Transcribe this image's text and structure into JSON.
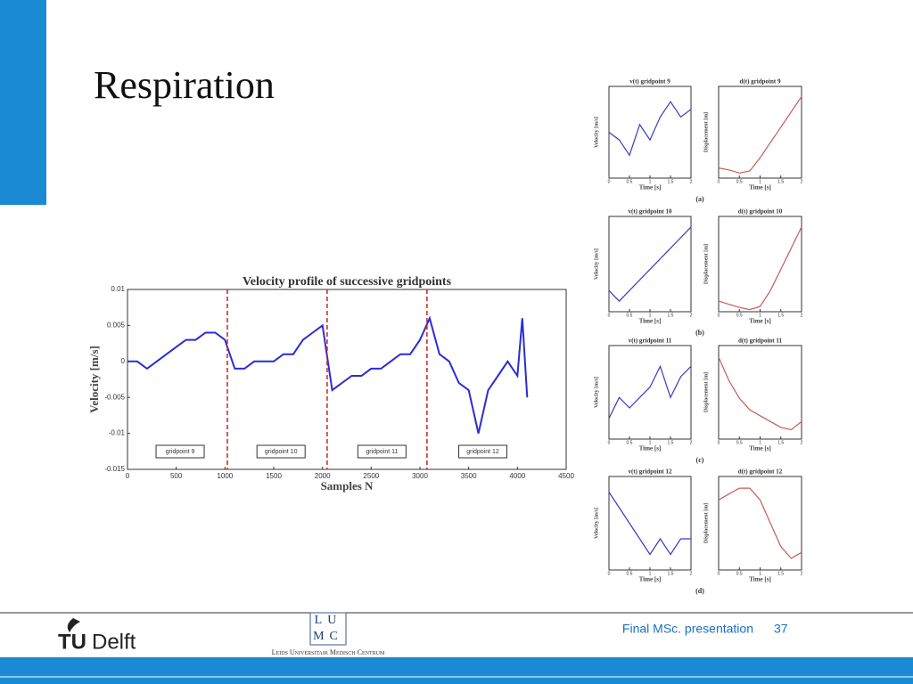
{
  "slide": {
    "title": "Respiration",
    "captions": [
      "(a)",
      "(b)",
      "(c)",
      "(d)"
    ],
    "footer": {
      "text": "Final MSc. presentation",
      "page": 37,
      "tu": "TU",
      "delft": "Delft",
      "lumc_top": "LU",
      "lumc_bottom": "MC",
      "lumc_name": "Leids Universitair Medisch Centrum"
    }
  },
  "chart_data": [
    {
      "type": "line",
      "title": "Velocity profile of successive gridpoints",
      "xlabel": "Samples N",
      "ylabel": "Velocity [m/s]",
      "color": "#2b2bd6",
      "x": [
        0,
        100,
        200,
        300,
        400,
        500,
        600,
        700,
        800,
        900,
        1000,
        1100,
        1200,
        1300,
        1400,
        1500,
        1600,
        1700,
        1800,
        1900,
        2000,
        2100,
        2200,
        2300,
        2400,
        2500,
        2600,
        2700,
        2800,
        2900,
        3000,
        3100,
        3200,
        3300,
        3400,
        3500,
        3600,
        3700,
        3800,
        3900,
        4000,
        4050,
        4100
      ],
      "values": [
        0,
        0,
        -0.001,
        0,
        0.001,
        0.002,
        0.003,
        0.003,
        0.004,
        0.004,
        0.003,
        -0.001,
        -0.001,
        0,
        0,
        0,
        0.001,
        0.001,
        0.003,
        0.004,
        0.005,
        -0.004,
        -0.003,
        -0.002,
        -0.002,
        -0.001,
        -0.001,
        0,
        0.001,
        0.001,
        0.003,
        0.006,
        0.001,
        0,
        -0.003,
        -0.004,
        -0.01,
        -0.004,
        -0.002,
        0,
        -0.002,
        0.006,
        -0.005
      ],
      "xlim": [
        0,
        4500
      ],
      "xticks": [
        0,
        500,
        1000,
        1500,
        2000,
        2500,
        3000,
        3500,
        4000,
        4500
      ],
      "ylim": [
        -0.015,
        0.01
      ],
      "yticks": [
        -0.015,
        -0.01,
        -0.005,
        0,
        0.005,
        0.01
      ],
      "vlines": [
        1024,
        2048,
        3072
      ],
      "vline_color": "#cc2222",
      "annotations": [
        "gridpoint 9",
        "gridpoint 10",
        "gridpoint 11",
        "gridpoint 12"
      ]
    },
    {
      "type": "line",
      "title": "v(t) gridpoint 9",
      "xlabel": "Time [s]",
      "ylabel": "Velocity [m/s]",
      "color": "#3a3ac8",
      "x": [
        0,
        0.25,
        0.5,
        0.75,
        1,
        1.25,
        1.5,
        1.75,
        2
      ],
      "values": [
        0,
        -1,
        -3,
        1,
        -1,
        2,
        4,
        2,
        3
      ],
      "xlim": [
        0,
        2
      ],
      "xticks": [
        0,
        0.5,
        1,
        1.5,
        2
      ],
      "ylim": [
        -6,
        6
      ]
    },
    {
      "type": "line",
      "title": "d(t) gridpoint 9",
      "xlabel": "Time [s]",
      "ylabel": "Displacement [m]",
      "color": "#c85a5a",
      "x": [
        0,
        0.25,
        0.5,
        0.75,
        1,
        1.25,
        1.5,
        1.75,
        2
      ],
      "values": [
        0,
        -0.2,
        -0.5,
        -0.3,
        1,
        2.5,
        4,
        5.5,
        7
      ],
      "xlim": [
        0,
        2
      ],
      "xticks": [
        0,
        0.5,
        1,
        1.5,
        2
      ],
      "ylim": [
        -1,
        8
      ]
    },
    {
      "type": "line",
      "title": "v(t) gridpoint 10",
      "xlabel": "Time [s]",
      "ylabel": "Velocity [m/s]",
      "color": "#3a3ac8",
      "x": [
        0,
        0.25,
        0.5,
        0.75,
        1,
        1.25,
        1.5,
        1.75,
        2
      ],
      "values": [
        -2,
        -3,
        -2,
        -1,
        0,
        1,
        2,
        3,
        4
      ],
      "xlim": [
        0,
        2
      ],
      "xticks": [
        0,
        0.5,
        1,
        1.5,
        2
      ],
      "ylim": [
        -4,
        5
      ]
    },
    {
      "type": "line",
      "title": "d(t) gridpoint 10",
      "xlabel": "Time [s]",
      "ylabel": "Displacement [m]",
      "color": "#c85a5a",
      "x": [
        0,
        0.25,
        0.5,
        0.75,
        1,
        1.25,
        1.5,
        1.75,
        2
      ],
      "values": [
        0,
        -0.3,
        -0.6,
        -0.8,
        -0.5,
        1,
        3,
        5,
        7
      ],
      "xlim": [
        0,
        2
      ],
      "xticks": [
        0,
        0.5,
        1,
        1.5,
        2
      ],
      "ylim": [
        -1,
        8
      ]
    },
    {
      "type": "line",
      "title": "v(t) gridpoint 11",
      "xlabel": "Time [s]",
      "ylabel": "Velocity [m/s]",
      "color": "#3a3ac8",
      "x": [
        0,
        0.25,
        0.5,
        0.75,
        1,
        1.25,
        1.5,
        1.75,
        2
      ],
      "values": [
        -3,
        -1,
        -2,
        -1,
        0,
        2,
        -1,
        1,
        2
      ],
      "xlim": [
        0,
        2
      ],
      "xticks": [
        0,
        0.5,
        1,
        1.5,
        2
      ],
      "ylim": [
        -5,
        4
      ]
    },
    {
      "type": "line",
      "title": "d(t) gridpoint 11",
      "xlabel": "Time [s]",
      "ylabel": "Displacement [m]",
      "color": "#c85a5a",
      "x": [
        0,
        0.25,
        0.5,
        0.75,
        1,
        1.25,
        1.5,
        1.75,
        2
      ],
      "values": [
        0,
        -2,
        -3.5,
        -4.5,
        -5,
        -5.5,
        -6,
        -6.2,
        -5.5
      ],
      "xlim": [
        0,
        2
      ],
      "xticks": [
        0,
        0.5,
        1,
        1.5,
        2
      ],
      "ylim": [
        -7,
        1
      ]
    },
    {
      "type": "line",
      "title": "v(t) gridpoint 12",
      "xlabel": "Time [s]",
      "ylabel": "Velocity [m/s]",
      "color": "#3a3ac8",
      "x": [
        0,
        0.25,
        0.5,
        0.75,
        1,
        1.25,
        1.5,
        1.75,
        2
      ],
      "values": [
        2,
        1,
        0,
        -1,
        -2,
        -1,
        -2,
        -1,
        -1
      ],
      "xlim": [
        0,
        2
      ],
      "xticks": [
        0,
        0.5,
        1,
        1.5,
        2
      ],
      "ylim": [
        -3,
        3
      ]
    },
    {
      "type": "line",
      "title": "d(t) gridpoint 12",
      "xlabel": "Time [s]",
      "ylabel": "Displacement [m]",
      "color": "#c85a5a",
      "x": [
        0,
        0.25,
        0.5,
        0.75,
        1,
        1.25,
        1.5,
        1.75,
        2
      ],
      "values": [
        0,
        0.5,
        1,
        1,
        0,
        -2,
        -4,
        -5,
        -4.5
      ],
      "xlim": [
        0,
        2
      ],
      "xticks": [
        0,
        0.5,
        1,
        1.5,
        2
      ],
      "ylim": [
        -6,
        2
      ]
    }
  ]
}
